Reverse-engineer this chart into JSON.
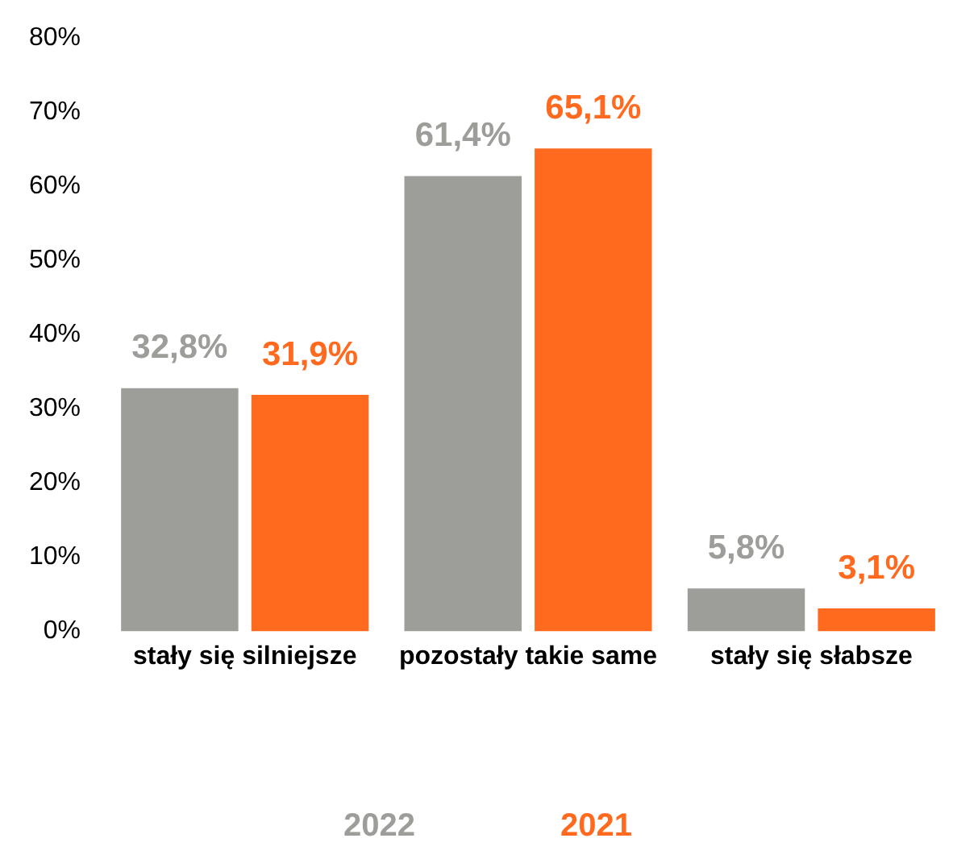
{
  "chart_data": {
    "type": "bar",
    "categories": [
      "stały się silniejsze",
      "pozostały takie same",
      "stały się słabsze"
    ],
    "series": [
      {
        "name": "2022",
        "color": "#9d9d9a",
        "values": [
          32.8,
          61.4,
          5.8
        ],
        "value_labels": [
          "32,8%",
          "61,4%",
          "5,8%"
        ]
      },
      {
        "name": "2021",
        "color": "#ff6a1f",
        "values": [
          31.9,
          65.1,
          3.1
        ],
        "value_labels": [
          "31,9%",
          "65,1%",
          "3,1%"
        ]
      }
    ],
    "ylim": [
      0,
      80
    ],
    "yticks": [
      {
        "value": 0,
        "label": "0%"
      },
      {
        "value": 10,
        "label": "10%"
      },
      {
        "value": 20,
        "label": "20%"
      },
      {
        "value": 30,
        "label": "30%"
      },
      {
        "value": 40,
        "label": "40%"
      },
      {
        "value": 50,
        "label": "50%"
      },
      {
        "value": 60,
        "label": "60%"
      },
      {
        "value": 70,
        "label": "70%"
      },
      {
        "value": 80,
        "label": "80%"
      }
    ],
    "grid": false,
    "legend": "bottom"
  }
}
